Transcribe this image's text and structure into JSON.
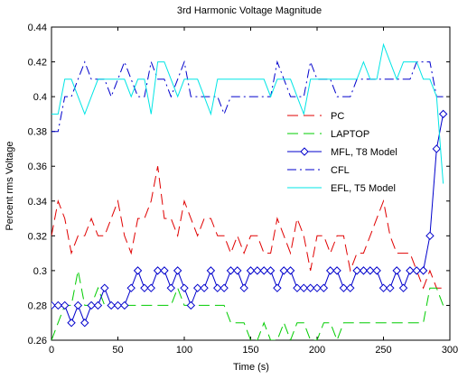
{
  "chart_data": {
    "type": "line",
    "title": "3rd Harmonic Voltage Magnitude",
    "xlabel": "Time (s)",
    "ylabel": "Percent rms Voltage",
    "xlim": [
      0,
      300
    ],
    "ylim": [
      0.26,
      0.44
    ],
    "xticks": [
      0,
      50,
      100,
      150,
      200,
      250,
      300
    ],
    "xtick_labels": [
      "0",
      "50",
      "100",
      "150",
      "200",
      "250",
      "300"
    ],
    "yticks": [
      0.26,
      0.28,
      0.3,
      0.32,
      0.34,
      0.36,
      0.38,
      0.4,
      0.42,
      0.44
    ],
    "ytick_labels": [
      "0.26",
      "0.28",
      "0.3",
      "0.32",
      "0.34",
      "0.36",
      "0.38",
      "0.4",
      "0.42",
      "0.44"
    ],
    "grid": false,
    "legend_position": "center-right",
    "series": [
      {
        "name": "PC",
        "color": "#e00000",
        "style": "dashed",
        "marker": "none",
        "x": [
          0,
          5,
          10,
          15,
          20,
          25,
          30,
          35,
          40,
          45,
          50,
          55,
          60,
          65,
          70,
          75,
          80,
          85,
          90,
          95,
          100,
          105,
          110,
          115,
          120,
          125,
          130,
          135,
          140,
          145,
          150,
          155,
          160,
          165,
          170,
          175,
          180,
          185,
          190,
          195,
          200,
          205,
          210,
          215,
          220,
          225,
          230,
          235,
          240,
          245,
          250,
          255,
          260,
          265,
          270,
          275,
          280,
          285,
          290,
          295
        ],
        "y": [
          0.32,
          0.34,
          0.33,
          0.31,
          0.32,
          0.32,
          0.33,
          0.32,
          0.32,
          0.33,
          0.34,
          0.32,
          0.31,
          0.33,
          0.33,
          0.34,
          0.36,
          0.33,
          0.33,
          0.32,
          0.34,
          0.33,
          0.32,
          0.33,
          0.33,
          0.32,
          0.32,
          0.31,
          0.32,
          0.31,
          0.32,
          0.32,
          0.31,
          0.31,
          0.33,
          0.32,
          0.31,
          0.33,
          0.32,
          0.3,
          0.32,
          0.32,
          0.31,
          0.32,
          0.32,
          0.3,
          0.31,
          0.31,
          0.32,
          0.33,
          0.34,
          0.32,
          0.31,
          0.31,
          0.31,
          0.3,
          0.29,
          0.3,
          0.29,
          0.29
        ]
      },
      {
        "name": "LAPTOP",
        "color": "#00cc00",
        "style": "dashed",
        "marker": "none",
        "x": [
          0,
          5,
          10,
          15,
          20,
          25,
          30,
          35,
          40,
          45,
          50,
          55,
          60,
          65,
          70,
          75,
          80,
          85,
          90,
          95,
          100,
          105,
          110,
          115,
          120,
          125,
          130,
          135,
          140,
          145,
          150,
          155,
          160,
          165,
          170,
          175,
          180,
          185,
          190,
          195,
          200,
          205,
          210,
          215,
          220,
          225,
          230,
          235,
          240,
          245,
          250,
          255,
          260,
          265,
          270,
          275,
          280,
          285,
          290,
          295
        ],
        "y": [
          0.26,
          0.27,
          0.28,
          0.28,
          0.3,
          0.28,
          0.28,
          0.29,
          0.28,
          0.28,
          0.28,
          0.28,
          0.28,
          0.28,
          0.28,
          0.28,
          0.28,
          0.28,
          0.28,
          0.29,
          0.28,
          0.28,
          0.28,
          0.28,
          0.28,
          0.28,
          0.28,
          0.27,
          0.27,
          0.27,
          0.26,
          0.26,
          0.27,
          0.26,
          0.26,
          0.27,
          0.26,
          0.27,
          0.27,
          0.26,
          0.26,
          0.27,
          0.27,
          0.26,
          0.27,
          0.27,
          0.27,
          0.27,
          0.27,
          0.27,
          0.27,
          0.27,
          0.27,
          0.27,
          0.27,
          0.27,
          0.27,
          0.29,
          0.29,
          0.28
        ]
      },
      {
        "name": "MFL, T8 Model",
        "color": "#0000cc",
        "style": "solid",
        "marker": "diamond",
        "x": [
          0,
          5,
          10,
          15,
          20,
          25,
          30,
          35,
          40,
          45,
          50,
          55,
          60,
          65,
          70,
          75,
          80,
          85,
          90,
          95,
          100,
          105,
          110,
          115,
          120,
          125,
          130,
          135,
          140,
          145,
          150,
          155,
          160,
          165,
          170,
          175,
          180,
          185,
          190,
          195,
          200,
          205,
          210,
          215,
          220,
          225,
          230,
          235,
          240,
          245,
          250,
          255,
          260,
          265,
          270,
          275,
          280,
          285,
          290,
          295
        ],
        "y": [
          0.28,
          0.28,
          0.28,
          0.27,
          0.28,
          0.27,
          0.28,
          0.28,
          0.29,
          0.28,
          0.28,
          0.28,
          0.29,
          0.3,
          0.29,
          0.29,
          0.3,
          0.3,
          0.29,
          0.3,
          0.29,
          0.28,
          0.29,
          0.29,
          0.3,
          0.29,
          0.29,
          0.3,
          0.3,
          0.29,
          0.3,
          0.3,
          0.3,
          0.3,
          0.29,
          0.3,
          0.3,
          0.29,
          0.29,
          0.29,
          0.29,
          0.29,
          0.3,
          0.3,
          0.29,
          0.29,
          0.3,
          0.3,
          0.3,
          0.3,
          0.29,
          0.29,
          0.3,
          0.29,
          0.3,
          0.3,
          0.3,
          0.32,
          0.37,
          0.39
        ]
      },
      {
        "name": "CFL",
        "color": "#0000cc",
        "style": "dashdot",
        "marker": "none",
        "x": [
          0,
          5,
          10,
          15,
          20,
          25,
          30,
          35,
          40,
          45,
          50,
          55,
          60,
          65,
          70,
          75,
          80,
          85,
          90,
          95,
          100,
          105,
          110,
          115,
          120,
          125,
          130,
          135,
          140,
          145,
          150,
          155,
          160,
          165,
          170,
          175,
          180,
          185,
          190,
          195,
          200,
          205,
          210,
          215,
          220,
          225,
          230,
          235,
          240,
          245,
          250,
          255,
          260,
          265,
          270,
          275,
          280,
          285,
          290,
          295
        ],
        "y": [
          0.38,
          0.38,
          0.4,
          0.4,
          0.41,
          0.42,
          0.41,
          0.41,
          0.41,
          0.4,
          0.41,
          0.42,
          0.41,
          0.4,
          0.4,
          0.42,
          0.41,
          0.41,
          0.4,
          0.41,
          0.42,
          0.4,
          0.4,
          0.4,
          0.4,
          0.4,
          0.39,
          0.4,
          0.4,
          0.4,
          0.4,
          0.4,
          0.4,
          0.4,
          0.42,
          0.41,
          0.4,
          0.4,
          0.4,
          0.42,
          0.41,
          0.41,
          0.41,
          0.4,
          0.4,
          0.4,
          0.41,
          0.41,
          0.41,
          0.41,
          0.41,
          0.41,
          0.41,
          0.41,
          0.41,
          0.42,
          0.42,
          0.42,
          0.4,
          0.4
        ]
      },
      {
        "name": "EFL, T5 Model",
        "color": "#00e5e5",
        "style": "solid",
        "marker": "none",
        "x": [
          0,
          5,
          10,
          15,
          20,
          25,
          30,
          35,
          40,
          45,
          50,
          55,
          60,
          65,
          70,
          75,
          80,
          85,
          90,
          95,
          100,
          105,
          110,
          115,
          120,
          125,
          130,
          135,
          140,
          145,
          150,
          155,
          160,
          165,
          170,
          175,
          180,
          185,
          190,
          195,
          200,
          205,
          210,
          215,
          220,
          225,
          230,
          235,
          240,
          245,
          250,
          255,
          260,
          265,
          270,
          275,
          280,
          285,
          290,
          295
        ],
        "y": [
          0.39,
          0.39,
          0.41,
          0.41,
          0.4,
          0.39,
          0.4,
          0.41,
          0.41,
          0.41,
          0.41,
          0.41,
          0.4,
          0.41,
          0.41,
          0.39,
          0.42,
          0.42,
          0.41,
          0.4,
          0.41,
          0.41,
          0.41,
          0.4,
          0.39,
          0.41,
          0.41,
          0.41,
          0.41,
          0.41,
          0.41,
          0.41,
          0.41,
          0.4,
          0.41,
          0.41,
          0.41,
          0.4,
          0.39,
          0.41,
          0.41,
          0.41,
          0.41,
          0.41,
          0.41,
          0.41,
          0.41,
          0.42,
          0.41,
          0.41,
          0.43,
          0.42,
          0.41,
          0.42,
          0.42,
          0.42,
          0.41,
          0.41,
          0.4,
          0.35
        ]
      }
    ]
  }
}
